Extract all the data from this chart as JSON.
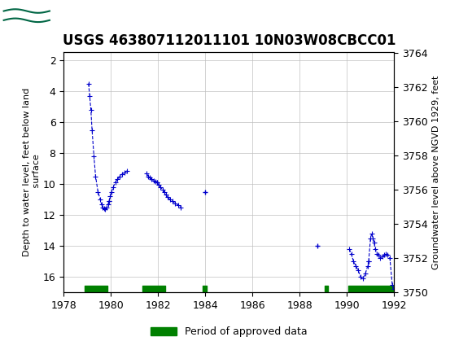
{
  "title": "USGS 463807112011101 10N03W08CBCC01",
  "header_bg": "#006644",
  "ylabel_left": "Depth to water level, feet below land\n surface",
  "ylabel_right": "Groundwater level above NGVD 1929, feet",
  "xlim": [
    1978,
    1992
  ],
  "ylim_left": [
    17.0,
    1.5
  ],
  "ylim_right": [
    3750.0,
    3764.0
  ],
  "xticks": [
    1978,
    1980,
    1982,
    1984,
    1986,
    1988,
    1990,
    1992
  ],
  "yticks_left": [
    2,
    4,
    6,
    8,
    10,
    12,
    14,
    16
  ],
  "yticks_right": [
    3750,
    3752,
    3754,
    3756,
    3758,
    3760,
    3762,
    3764
  ],
  "line_color": "#0000cc",
  "marker": "+",
  "linestyle": "--",
  "approved_color": "#008000",
  "approved_bars": [
    [
      1978.9,
      1979.85
    ],
    [
      1981.35,
      1982.3
    ],
    [
      1983.87,
      1984.07
    ],
    [
      1989.05,
      1989.2
    ],
    [
      1990.05,
      1992.05
    ]
  ],
  "approved_bar_y": 16.75,
  "approved_bar_height": 0.18,
  "segments": [
    {
      "x": [
        1979.05,
        1979.1,
        1979.15,
        1979.2,
        1979.28,
        1979.35,
        1979.45,
        1979.55,
        1979.6,
        1979.65,
        1979.7,
        1979.75,
        1979.82,
        1979.88,
        1979.92
      ],
      "y": [
        3.5,
        4.3,
        5.2,
        6.5,
        8.2,
        9.5,
        10.5,
        11.0,
        11.3,
        11.5,
        11.6,
        11.65,
        11.5,
        11.3,
        11.1
      ]
    },
    {
      "x": [
        1979.92,
        1979.97,
        1980.02,
        1980.1,
        1980.18,
        1980.28,
        1980.38,
        1980.48,
        1980.58,
        1980.68
      ],
      "y": [
        11.1,
        10.8,
        10.5,
        10.2,
        9.9,
        9.7,
        9.5,
        9.35,
        9.25,
        9.15
      ]
    },
    {
      "x": [
        1981.5,
        1981.58,
        1981.65,
        1981.72,
        1981.8,
        1981.88,
        1981.95
      ],
      "y": [
        9.3,
        9.5,
        9.6,
        9.7,
        9.8,
        9.85,
        9.9
      ]
    },
    {
      "x": [
        1981.95,
        1982.02,
        1982.1,
        1982.18,
        1982.25,
        1982.32,
        1982.4,
        1982.5,
        1982.6,
        1982.72,
        1982.85,
        1982.95
      ],
      "y": [
        9.9,
        10.05,
        10.2,
        10.35,
        10.5,
        10.7,
        10.85,
        11.0,
        11.1,
        11.25,
        11.35,
        11.5
      ]
    },
    {
      "x": [
        1984.0
      ],
      "y": [
        10.5
      ]
    },
    {
      "x": [
        1988.75
      ],
      "y": [
        14.0
      ]
    },
    {
      "x": [
        1990.1,
        1990.18,
        1990.28,
        1990.38,
        1990.48,
        1990.58,
        1990.68,
        1990.78,
        1990.88,
        1990.92
      ],
      "y": [
        14.2,
        14.5,
        15.0,
        15.3,
        15.6,
        16.0,
        16.1,
        15.8,
        15.3,
        15.0
      ]
    },
    {
      "x": [
        1990.92,
        1991.0,
        1991.05,
        1991.1,
        1991.15,
        1991.2,
        1991.28,
        1991.35,
        1991.42,
        1991.5,
        1991.58,
        1991.65,
        1991.72,
        1991.82,
        1991.92,
        1991.98
      ],
      "y": [
        15.0,
        13.5,
        13.2,
        13.5,
        13.8,
        14.2,
        14.5,
        14.6,
        14.8,
        14.7,
        14.6,
        14.5,
        14.6,
        14.8,
        16.5,
        16.8
      ]
    }
  ],
  "background_color": "#ffffff",
  "plot_bg": "#ffffff",
  "grid_color": "#c0c0c0",
  "legend_label": "Period of approved data",
  "title_fontsize": 12,
  "axis_fontsize": 8,
  "tick_fontsize": 9
}
